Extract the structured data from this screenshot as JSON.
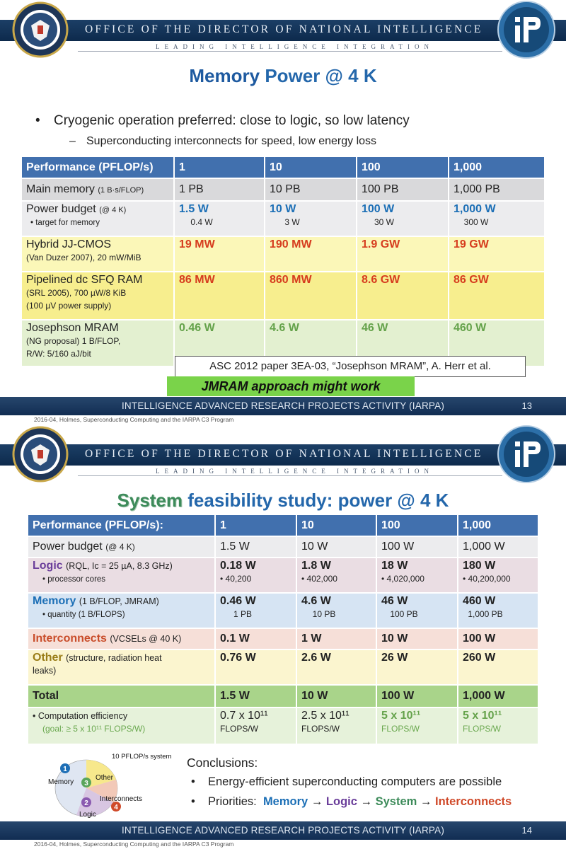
{
  "header": {
    "org": "OFFICE OF THE DIRECTOR OF NATIONAL INTELLIGENCE",
    "tagline": "LEADING INTELLIGENCE INTEGRATION"
  },
  "footer": {
    "agency": "INTELLIGENCE ADVANCED RESEARCH PROJECTS ACTIVITY (IARPA)",
    "credit": "2016-04, Holmes, Superconducting Computing and the IARPA C3 Program"
  },
  "colors": {
    "title_blue": "#2467ab",
    "header_navy": "#0d2a4c",
    "table_header": "#4170ae",
    "value_blue": "#1c6fb6",
    "value_red": "#d63c1e",
    "value_green": "#64a24a"
  },
  "slide1": {
    "title_a": "Memory",
    "title_b": "Power @ 4 K",
    "bullet": "Cryogenic operation preferred: close to logic, so low latency",
    "subbullet": "Superconducting interconnects for speed, low energy loss",
    "cols": [
      "Performance (PFLOP/s)",
      "1",
      "10",
      "100",
      "1,000"
    ],
    "main_memory": {
      "label": "Main memory",
      "note": "(1 B·s/FLOP)",
      "values": [
        "1 PB",
        "10 PB",
        "100 PB",
        "1,000 PB"
      ]
    },
    "power_budget": {
      "label": "Power budget",
      "note": "(@ 4 K)",
      "sub": "target for memory",
      "values": [
        "1.5 W",
        "10 W",
        "100 W",
        "1,000 W"
      ],
      "targets": [
        "0.4 W",
        "3 W",
        "30 W",
        "300 W"
      ]
    },
    "hybrid": {
      "label": "Hybrid JJ-CMOS",
      "note": "(Van Duzer 2007), 20 mW/MiB",
      "values": [
        "19 MW",
        "190 MW",
        "1.9 GW",
        "19 GW"
      ]
    },
    "sfq": {
      "label": "Pipelined dc SFQ RAM",
      "note1": "(SRL 2005), 700 µW/8 KiB",
      "note2": "(100 µV power supply)",
      "values": [
        "86 MW",
        "860 MW",
        "8.6 GW",
        "86 GW"
      ]
    },
    "mram": {
      "label": "Josephson MRAM",
      "note1": "(NG proposal) 1 B/FLOP,",
      "note2": "R/W: 5/160 aJ/bit",
      "values": [
        "0.46 W",
        "4.6 W",
        "46 W",
        "460 W"
      ]
    },
    "citation": "ASC 2012 paper 3EA-03, “Josephson MRAM”, A. Herr et al.",
    "callout": "JMRAM approach might work",
    "page": "13"
  },
  "slide2": {
    "title_a": "System",
    "title_b": "feasibility study: power @ 4 K",
    "cols": [
      "Performance (PFLOP/s):",
      "1",
      "10",
      "100",
      "1,000"
    ],
    "power_budget": {
      "label": "Power budget",
      "note": "(@ 4 K)",
      "values": [
        "1.5 W",
        "10 W",
        "100 W",
        "1,000 W"
      ]
    },
    "logic": {
      "label": "Logic",
      "note": "(RQL, Ic = 25 µA, 8.3 GHz)",
      "sub": "processor cores",
      "values": [
        "0.18 W",
        "1.8 W",
        "18 W",
        "180 W"
      ],
      "subvalues": [
        "• 40,200",
        "• 402,000",
        "• 4,020,000",
        "• 40,200,000"
      ]
    },
    "memory": {
      "label": "Memory",
      "note": "(1 B/FLOP, JMRAM)",
      "sub": "quantity (1 B/FLOPS)",
      "values": [
        "0.46 W",
        "4.6 W",
        "46 W",
        "460 W"
      ],
      "subvalues": [
        "1 PB",
        "10 PB",
        "100 PB",
        "1,000 PB"
      ]
    },
    "interconnects": {
      "label": "Interconnects",
      "note": "(VCSELs @ 40 K)",
      "values": [
        "0.1 W",
        "1 W",
        "10 W",
        "100 W"
      ]
    },
    "other": {
      "label": "Other",
      "note1": "(structure, radiation heat",
      "note2": "leaks)",
      "values": [
        "0.76 W",
        "2.6 W",
        "26 W",
        "260 W"
      ]
    },
    "total": {
      "label": "Total",
      "values": [
        "1.5 W",
        "10 W",
        "100 W",
        "1,000 W"
      ]
    },
    "efficiency": {
      "label": "Computation efficiency",
      "goal": "(goal: ≥ 5 x 10¹¹ FLOPS/W)",
      "values": [
        "0.7 x 10¹¹",
        "2.5 x 10¹¹",
        "5 x 10¹¹",
        "5 x 10¹¹"
      ],
      "unit": "FLOPS/W"
    },
    "pie": {
      "system_label": "10 PFLOP/s system",
      "memory": "Memory",
      "other": "Other",
      "interconnects": "Interconnects",
      "logic": "Logic",
      "n1": "1",
      "n2": "2",
      "n3": "3",
      "n4": "4"
    },
    "conclusions": {
      "heading": "Conclusions:",
      "c1": "Energy-efficient superconducting computers are possible",
      "c2_prefix": "Priorities:",
      "p1": "Memory",
      "p2": "Logic",
      "p3": "System",
      "p4": "Interconnects",
      "arrow": "→"
    },
    "page": "14"
  }
}
